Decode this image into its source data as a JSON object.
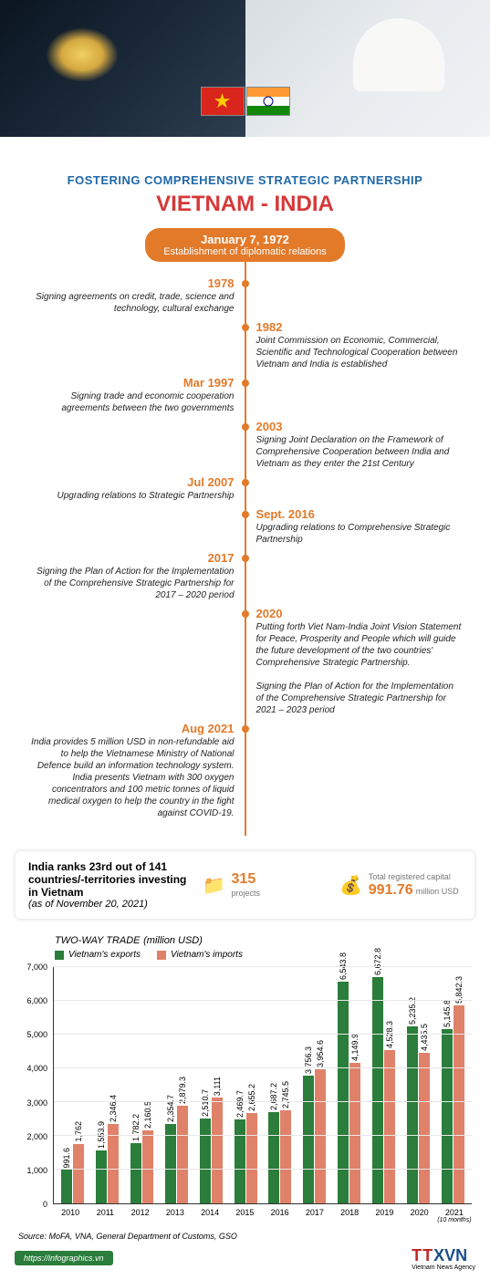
{
  "colors": {
    "accent": "#e27a2a",
    "subtitle": "#2068a8",
    "title": "#d63838",
    "exports": "#2a7d3a",
    "imports": "#e0816a",
    "stats_num": "#e27a2a",
    "green": "#2a7d3a",
    "logo_tt": "#c22828",
    "logo_xvn": "#1a4d8a",
    "text": "#222"
  },
  "header": {
    "subtitle": "FOSTERING COMPREHENSIVE STRATEGIC PARTNERSHIP",
    "title": "VIETNAM - INDIA"
  },
  "badge": {
    "date": "January 7, 1972",
    "text": "Establishment of diplomatic relations"
  },
  "timeline": [
    {
      "side": "left",
      "year": "1978",
      "text": "Signing agreements on credit, trade, science and technology, cultural exchange"
    },
    {
      "side": "right",
      "year": "1982",
      "text": "Joint Commission on Economic, Commercial, Scientific and Technological Cooperation between Vietnam and India is established"
    },
    {
      "side": "left",
      "year": "Mar 1997",
      "text": "Signing trade and economic cooperation agreements between the two governments"
    },
    {
      "side": "right",
      "year": "2003",
      "text": "Signing Joint Declaration on the Framework of Comprehensive Cooperation between India and Vietnam as they enter the 21st Century"
    },
    {
      "side": "left",
      "year": "Jul 2007",
      "text": "Upgrading relations to Strategic Partnership"
    },
    {
      "side": "right",
      "year": "Sept. 2016",
      "text": "Upgrading relations to Comprehensive Strategic Partnership"
    },
    {
      "side": "left",
      "year": "2017",
      "text": "Signing the Plan of Action for the Implementation of the Comprehensive Strategic Partnership for 2017 – 2020 period"
    },
    {
      "side": "right",
      "year": "2020",
      "text": "Putting forth Viet Nam-India Joint Vision Statement for Peace, Prosperity and People which will guide the future development of the two countries' Comprehensive Strategic Partnership.\n\nSigning the Plan of Action for the Implementation of the Comprehensive Strategic Partnership for 2021 – 2023 period"
    },
    {
      "side": "left",
      "year": "Aug 2021",
      "text": "India provides 5 million USD in non-refundable aid to help the Vietnamese Ministry of National Defence build an information technology system. India presents Vietnam with 300 oxygen concentrators and 100 metric tonnes of liquid medical oxygen to help the country in the fight against COVID-19."
    }
  ],
  "stats": {
    "rank_bold": "India ranks 23rd out of 141 countries/-territories investing in Vietnam",
    "rank_note": "(as of November 20, 2021)",
    "projects_num": "315",
    "projects_lbl": "projects",
    "capital_lbl": "Total registered capital",
    "capital_num": "991.76",
    "capital_unit": "million USD"
  },
  "chart": {
    "title": "TWO-WAY TRADE",
    "title_unit": "(million USD)",
    "legend_exports": "Vietnam's exports",
    "legend_imports": "Vietnam's imports",
    "y_max": 7000,
    "y_ticks": [
      0,
      1000,
      2000,
      3000,
      4000,
      5000,
      6000,
      7000
    ],
    "years": [
      {
        "year": "2010",
        "exp": 991.6,
        "imp": 1762,
        "note": ""
      },
      {
        "year": "2011",
        "exp": 1553.9,
        "imp": 2346.4,
        "note": ""
      },
      {
        "year": "2012",
        "exp": 1782.2,
        "imp": 2160.5,
        "note": ""
      },
      {
        "year": "2013",
        "exp": 2354.7,
        "imp": 2879.3,
        "note": ""
      },
      {
        "year": "2014",
        "exp": 2510.7,
        "imp": 3111,
        "note": ""
      },
      {
        "year": "2015",
        "exp": 2469.7,
        "imp": 2655.2,
        "note": ""
      },
      {
        "year": "2016",
        "exp": 2687.2,
        "imp": 2745.5,
        "note": ""
      },
      {
        "year": "2017",
        "exp": 3756.3,
        "imp": 3954.6,
        "note": ""
      },
      {
        "year": "2018",
        "exp": 6543.8,
        "imp": 4149.9,
        "note": ""
      },
      {
        "year": "2019",
        "exp": 6672.8,
        "imp": 4528.3,
        "note": ""
      },
      {
        "year": "2020",
        "exp": 5235.2,
        "imp": 4435.5,
        "note": ""
      },
      {
        "year": "2021",
        "exp": 5145.8,
        "imp": 5842.3,
        "note": "(10 months)"
      }
    ]
  },
  "footer": {
    "source": "Source: MoFA, VNA, General Department of Customs, GSO",
    "link": "https://infographics.vn",
    "logo_tt": "TT",
    "logo_xvn": "XVN",
    "logo_sub": "Vietnam News Agency"
  }
}
